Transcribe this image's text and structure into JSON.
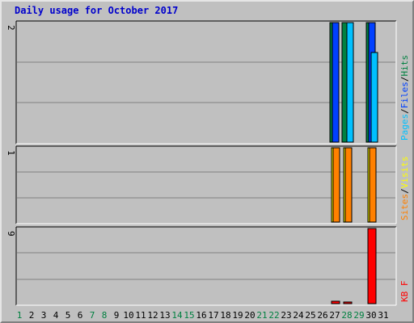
{
  "title": "Daily usage for October 2017",
  "chart_data": [
    {
      "type": "bar",
      "panel": "top",
      "y_tick_label": "2",
      "ylim": [
        0,
        2
      ],
      "categories": [
        "1",
        "2",
        "3",
        "4",
        "5",
        "6",
        "7",
        "8",
        "9",
        "10",
        "11",
        "12",
        "13",
        "14",
        "15",
        "16",
        "17",
        "18",
        "19",
        "20",
        "21",
        "22",
        "23",
        "24",
        "25",
        "26",
        "27",
        "28",
        "29",
        "30",
        "31"
      ],
      "series": [
        {
          "name": "Hits",
          "color": "#008040",
          "values": {
            "27": 2,
            "28": 2,
            "30": 2
          }
        },
        {
          "name": "Files",
          "color": "#0040ff",
          "values": {
            "27": 2,
            "28": 0,
            "30": 2
          }
        },
        {
          "name": "Pages",
          "color": "#00c0ff",
          "values": {
            "27": 0,
            "28": 2,
            "30": 1.5
          }
        }
      ]
    },
    {
      "type": "bar",
      "panel": "middle",
      "y_tick_label": "1",
      "ylim": [
        0,
        1
      ],
      "series": [
        {
          "name": "Visits",
          "color": "#ffff00",
          "values": {
            "27": 1,
            "28": 1,
            "30": 1
          }
        },
        {
          "name": "Sites",
          "color": "#ff8000",
          "values": {
            "27": 1,
            "28": 1,
            "30": 1
          }
        }
      ]
    },
    {
      "type": "bar",
      "panel": "bottom",
      "y_tick_label": "9",
      "ylim": [
        0,
        9
      ],
      "series": [
        {
          "name": "KB F",
          "color": "#ff0000",
          "values": {
            "27": 0.25,
            "28": 0.2,
            "30": 9
          }
        }
      ]
    }
  ],
  "legend": {
    "top": [
      {
        "label": "Pages",
        "color": "#00c0ff"
      },
      {
        "sep": "/"
      },
      {
        "label": "Files",
        "color": "#0040ff"
      },
      {
        "sep": "/"
      },
      {
        "label": "Hits",
        "color": "#008040"
      }
    ],
    "middle": [
      {
        "label": "Sites",
        "color": "#ff8000"
      },
      {
        "sep": "/"
      },
      {
        "label": "Visits",
        "color": "#ffff00"
      }
    ],
    "bottom": [
      {
        "label": "KB F",
        "color": "#ff0000"
      }
    ]
  },
  "weekend_days": [
    "1",
    "7",
    "8",
    "14",
    "15",
    "21",
    "22",
    "28",
    "29"
  ],
  "weekday_color": "#000000",
  "weekend_color": "#008040"
}
